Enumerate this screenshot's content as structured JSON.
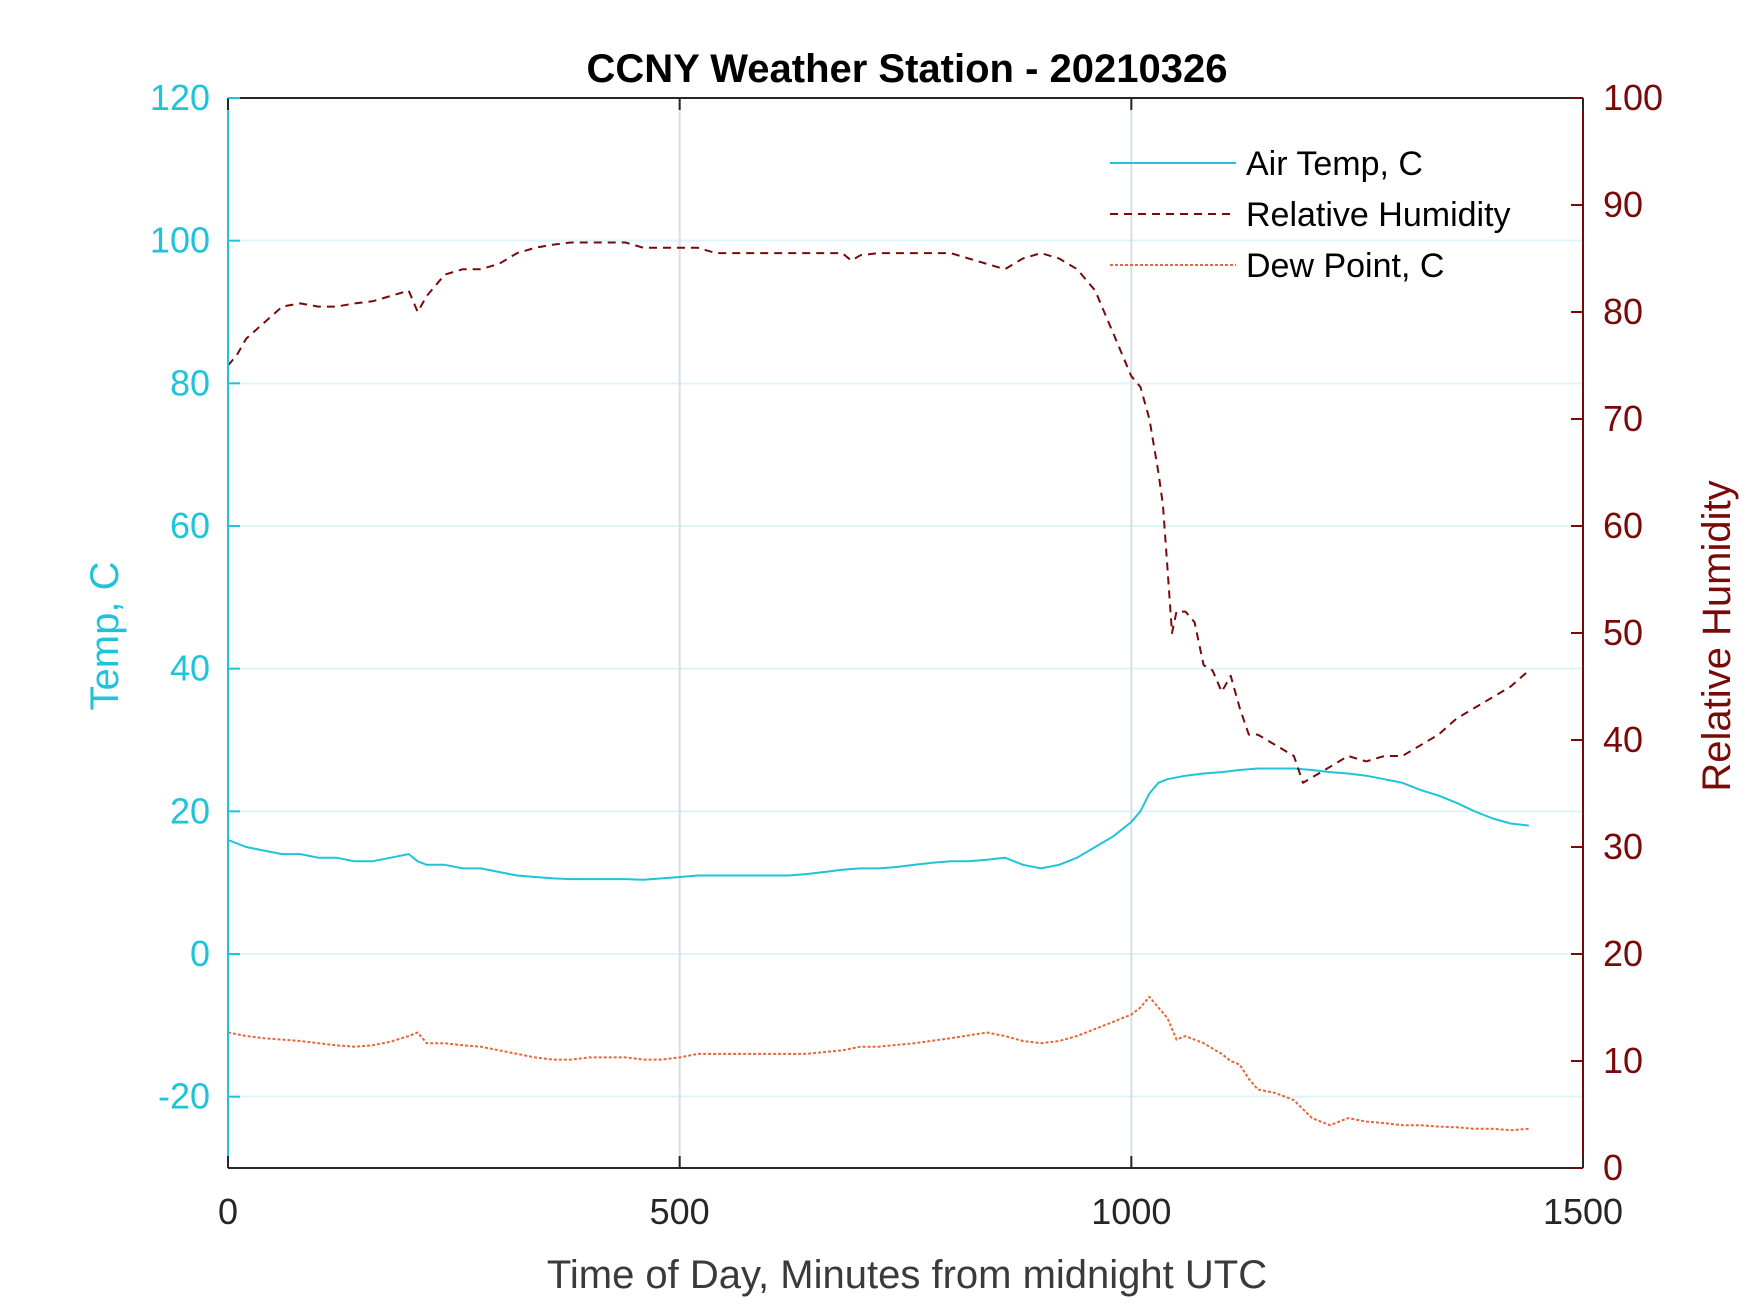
{
  "chart_data": {
    "type": "line",
    "title": "CCNY Weather Station - 20210326",
    "xlabel": "Time of Day, Minutes from midnight UTC",
    "ylabel_left": "Temp, C",
    "ylabel_right": "Relative Humidity",
    "xlim": [
      0,
      1500
    ],
    "ylim_left": [
      -30,
      120
    ],
    "ylim_right": [
      0,
      100
    ],
    "x_ticks": [
      "0",
      "500",
      "1000",
      "1500"
    ],
    "y_left_ticks": [
      "-20",
      "0",
      "20",
      "40",
      "60",
      "80",
      "100",
      "120"
    ],
    "y_right_ticks": [
      "0",
      "10",
      "20",
      "30",
      "40",
      "50",
      "60",
      "70",
      "80",
      "90",
      "100"
    ],
    "grid": "on",
    "legend_position": "top-right",
    "colors": {
      "temp_axis": "#1FC4DA",
      "rh_axis": "#7A0A0A",
      "air_temp": "#1FC4DA",
      "humidity": "#7A0A0A",
      "dew_point": "#E8663A",
      "grid_h": "#DDF4F8",
      "grid_v": "#D8DEE4"
    },
    "series": [
      {
        "name": "Air Temp, C",
        "axis": "left",
        "style": "solid",
        "x": [
          0,
          20,
          40,
          60,
          80,
          100,
          120,
          140,
          160,
          180,
          200,
          210,
          220,
          240,
          260,
          280,
          300,
          320,
          340,
          360,
          380,
          400,
          420,
          440,
          460,
          480,
          500,
          520,
          540,
          560,
          580,
          600,
          620,
          640,
          660,
          680,
          700,
          720,
          740,
          760,
          780,
          800,
          820,
          840,
          860,
          880,
          900,
          920,
          940,
          960,
          980,
          1000,
          1010,
          1020,
          1030,
          1040,
          1060,
          1080,
          1100,
          1120,
          1140,
          1160,
          1180,
          1200,
          1220,
          1240,
          1260,
          1280,
          1300,
          1320,
          1340,
          1360,
          1380,
          1400,
          1420,
          1440
        ],
        "y": [
          16,
          15,
          14.5,
          14,
          14,
          13.5,
          13.5,
          13,
          13,
          13.5,
          14,
          13,
          12.5,
          12.5,
          12,
          12,
          11.5,
          11,
          10.8,
          10.6,
          10.5,
          10.5,
          10.5,
          10.5,
          10.4,
          10.6,
          10.8,
          11,
          11,
          11,
          11,
          11,
          11,
          11.2,
          11.5,
          11.8,
          12,
          12,
          12.2,
          12.5,
          12.8,
          13,
          13,
          13.2,
          13.5,
          12.5,
          12,
          12.5,
          13.5,
          15,
          16.5,
          18.5,
          20,
          22.5,
          24,
          24.5,
          25,
          25.3,
          25.5,
          25.8,
          26,
          26,
          26,
          25.8,
          25.5,
          25.3,
          25,
          24.5,
          24,
          23,
          22.2,
          21.2,
          20,
          19,
          18.3,
          18
        ]
      },
      {
        "name": "Relative Humidity",
        "axis": "right",
        "style": "dashed",
        "x": [
          0,
          10,
          20,
          40,
          60,
          80,
          100,
          120,
          140,
          160,
          180,
          200,
          210,
          220,
          240,
          260,
          280,
          300,
          320,
          340,
          360,
          380,
          400,
          440,
          460,
          480,
          500,
          520,
          540,
          560,
          600,
          640,
          680,
          690,
          700,
          720,
          760,
          800,
          820,
          840,
          860,
          880,
          900,
          920,
          940,
          960,
          970,
          980,
          990,
          1000,
          1010,
          1020,
          1030,
          1035,
          1040,
          1045,
          1050,
          1060,
          1070,
          1080,
          1090,
          1100,
          1110,
          1120,
          1130,
          1140,
          1160,
          1180,
          1190,
          1200,
          1220,
          1240,
          1260,
          1280,
          1300,
          1320,
          1340,
          1360,
          1380,
          1400,
          1420,
          1440
        ],
        "y": [
          75,
          76,
          77.5,
          79,
          80.5,
          80.8,
          80.5,
          80.5,
          80.8,
          81,
          81.5,
          82,
          80,
          81.5,
          83.5,
          84,
          84,
          84.5,
          85.5,
          86,
          86.3,
          86.5,
          86.5,
          86.5,
          86,
          86,
          86,
          86,
          85.5,
          85.5,
          85.5,
          85.5,
          85.5,
          84.8,
          85.3,
          85.5,
          85.5,
          85.5,
          85,
          84.5,
          84,
          85,
          85.5,
          85,
          84,
          82,
          80,
          78,
          76,
          74,
          73,
          70,
          65,
          62,
          56,
          50,
          52,
          52,
          51,
          47,
          46.5,
          44.5,
          46,
          43,
          40.5,
          40.5,
          39.5,
          38.5,
          36,
          36.5,
          37.5,
          38.5,
          38,
          38.5,
          38.5,
          39.5,
          40.5,
          42,
          43,
          44,
          45,
          46.5
        ]
      },
      {
        "name": "Dew Point, C",
        "axis": "left",
        "style": "dotted",
        "x": [
          0,
          20,
          40,
          60,
          80,
          100,
          120,
          140,
          160,
          180,
          200,
          210,
          220,
          240,
          260,
          280,
          300,
          320,
          340,
          360,
          380,
          400,
          420,
          440,
          460,
          480,
          500,
          520,
          540,
          560,
          600,
          640,
          680,
          700,
          720,
          760,
          800,
          840,
          860,
          880,
          900,
          920,
          940,
          960,
          980,
          1000,
          1010,
          1020,
          1030,
          1040,
          1050,
          1060,
          1080,
          1100,
          1110,
          1120,
          1130,
          1140,
          1160,
          1180,
          1200,
          1220,
          1240,
          1260,
          1280,
          1300,
          1320,
          1340,
          1360,
          1380,
          1400,
          1420,
          1440
        ],
        "y": [
          -11,
          -11.5,
          -11.8,
          -12,
          -12.2,
          -12.5,
          -12.8,
          -13,
          -12.8,
          -12.3,
          -11.5,
          -11,
          -12.5,
          -12.5,
          -12.8,
          -13,
          -13.5,
          -14,
          -14.5,
          -14.8,
          -14.8,
          -14.5,
          -14.5,
          -14.5,
          -14.8,
          -14.8,
          -14.5,
          -14,
          -14,
          -14,
          -14,
          -14,
          -13.5,
          -13,
          -13,
          -12.5,
          -11.8,
          -11,
          -11.5,
          -12.2,
          -12.5,
          -12.2,
          -11.5,
          -10.5,
          -9.5,
          -8.5,
          -7.5,
          -6,
          -7.5,
          -9,
          -12,
          -11.5,
          -12.5,
          -14,
          -15,
          -15.5,
          -17.5,
          -19,
          -19.5,
          -20.5,
          -23,
          -24,
          -23,
          -23.5,
          -23.7,
          -24,
          -24,
          -24.2,
          -24.3,
          -24.5,
          -24.5,
          -24.7,
          -24.5
        ]
      }
    ]
  }
}
